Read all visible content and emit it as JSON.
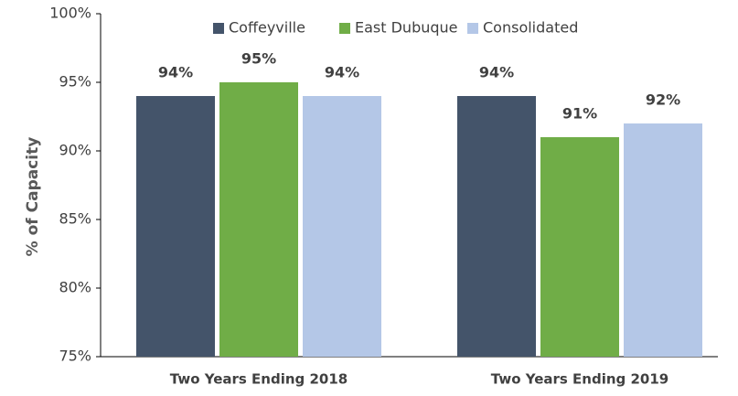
{
  "chart_data": {
    "type": "bar",
    "y_label": "% of Capacity",
    "categories": [
      "Two Years Ending 2018",
      "Two Years Ending 2019"
    ],
    "series": [
      {
        "name": "Coffeyville",
        "color": "#44546a",
        "values": [
          94,
          94
        ],
        "value_labels": [
          "94%",
          "94%"
        ]
      },
      {
        "name": "East Dubuque",
        "color": "#70ad47",
        "values": [
          95,
          91
        ],
        "value_labels": [
          "95%",
          "91%"
        ]
      },
      {
        "name": "Consolidated",
        "color": "#b4c7e7",
        "values": [
          94,
          92
        ],
        "value_labels": [
          "94%",
          "92%"
        ]
      }
    ],
    "ylim": [
      75,
      100
    ],
    "yticks": [
      {
        "value": 75,
        "label": "75%"
      },
      {
        "value": 80,
        "label": "80%"
      },
      {
        "value": 85,
        "label": "85%"
      },
      {
        "value": 90,
        "label": "90%"
      },
      {
        "value": 95,
        "label": "95%"
      },
      {
        "value": 100,
        "label": "100%"
      }
    ],
    "grid": false,
    "legend": "top"
  }
}
